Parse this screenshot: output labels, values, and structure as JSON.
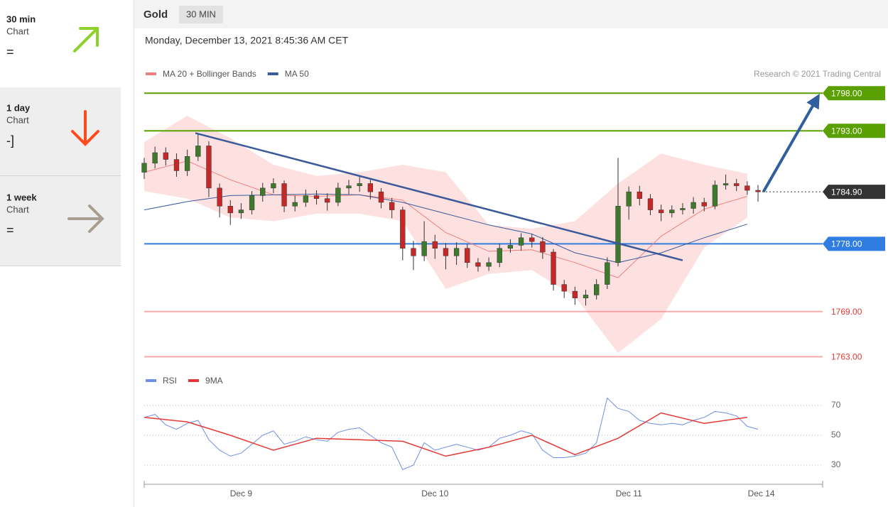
{
  "sidebar": {
    "panels": [
      {
        "period": "30 min",
        "label": "Chart",
        "signal": "="
      },
      {
        "period": "1 day",
        "label": "Chart",
        "signal": "-]"
      },
      {
        "period": "1 week",
        "label": "Chart",
        "signal": "="
      }
    ]
  },
  "chart_data": {
    "type": "candlestick",
    "title": "Gold",
    "timeframe": "30 MIN",
    "subtitle": "Monday, December 13, 2021 8:45:36 AM CET",
    "credit": "Research © 2021 Trading Central",
    "x": [
      0,
      1,
      2,
      3,
      4,
      5,
      6,
      7,
      8,
      9,
      10,
      11,
      12,
      13,
      14,
      15,
      16,
      17,
      18,
      19,
      20,
      21,
      22,
      23,
      24,
      25,
      26,
      27,
      28,
      29,
      30,
      31,
      32,
      33,
      34,
      35,
      36,
      37,
      38,
      39,
      40,
      41,
      42,
      43,
      44,
      45,
      46,
      47,
      48,
      49,
      50,
      51,
      52,
      53,
      54,
      55,
      56,
      57
    ],
    "open": [
      1787.5,
      1788.7,
      1790.1,
      1789.2,
      1787.7,
      1789.6,
      1791.0,
      1785.4,
      1783.0,
      1782.1,
      1782.5,
      1784.4,
      1785.4,
      1786.0,
      1783.0,
      1783.5,
      1784.4,
      1784.0,
      1783.5,
      1785.4,
      1785.7,
      1786.0,
      1784.9,
      1783.5,
      1782.5,
      1777.4,
      1776.4,
      1778.3,
      1777.4,
      1776.4,
      1777.4,
      1775.5,
      1775.0,
      1775.5,
      1777.4,
      1777.8,
      1778.8,
      1778.3,
      1776.9,
      1772.6,
      1771.7,
      1770.8,
      1771.2,
      1772.6,
      1775.5,
      1783.0,
      1784.9,
      1784.0,
      1782.5,
      1782.1,
      1782.5,
      1782.7,
      1783.5,
      1783.0,
      1785.8,
      1786.0,
      1785.7,
      1785.1
    ],
    "high": [
      1789.4,
      1790.9,
      1790.8,
      1790.0,
      1790.5,
      1792.6,
      1791.6,
      1786.0,
      1783.8,
      1783.4,
      1785.0,
      1786.1,
      1786.7,
      1786.4,
      1784.4,
      1785.2,
      1785.1,
      1784.7,
      1786.1,
      1786.5,
      1786.9,
      1786.5,
      1785.4,
      1784.1,
      1782.9,
      1778.4,
      1781.0,
      1779.2,
      1778.1,
      1778.2,
      1778.0,
      1776.1,
      1776.2,
      1778.0,
      1778.6,
      1779.4,
      1779.3,
      1778.9,
      1777.3,
      1773.2,
      1772.3,
      1771.9,
      1773.3,
      1776.2,
      1789.4,
      1785.6,
      1785.7,
      1784.6,
      1783.2,
      1783.1,
      1783.4,
      1784.2,
      1784.1,
      1786.4,
      1787.2,
      1786.6,
      1786.3,
      1785.8
    ],
    "low": [
      1786.6,
      1788.0,
      1788.4,
      1786.9,
      1787.0,
      1789.0,
      1784.2,
      1781.5,
      1780.5,
      1781.3,
      1781.9,
      1783.6,
      1784.7,
      1782.2,
      1782.3,
      1782.9,
      1783.2,
      1782.4,
      1783.0,
      1784.6,
      1784.9,
      1783.9,
      1782.7,
      1781.4,
      1775.8,
      1774.5,
      1775.7,
      1776.0,
      1774.6,
      1775.2,
      1774.8,
      1774.3,
      1774.4,
      1774.9,
      1776.8,
      1777.1,
      1777.5,
      1776.0,
      1771.8,
      1770.8,
      1769.9,
      1769.8,
      1770.6,
      1772.0,
      1775.0,
      1781.2,
      1783.1,
      1781.8,
      1781.0,
      1781.5,
      1781.9,
      1782.0,
      1782.3,
      1782.6,
      1785.2,
      1785.0,
      1784.5,
      1783.6
    ],
    "close": [
      1788.7,
      1790.1,
      1789.2,
      1787.7,
      1789.6,
      1791.0,
      1785.4,
      1783.0,
      1782.1,
      1782.5,
      1784.4,
      1785.4,
      1786.0,
      1783.0,
      1783.5,
      1784.4,
      1784.0,
      1783.5,
      1785.4,
      1785.7,
      1786.0,
      1784.9,
      1783.5,
      1782.5,
      1777.4,
      1776.4,
      1778.3,
      1777.4,
      1776.4,
      1777.4,
      1775.5,
      1775.0,
      1775.5,
      1777.4,
      1777.8,
      1778.8,
      1778.3,
      1776.9,
      1772.6,
      1771.7,
      1770.8,
      1771.2,
      1772.6,
      1775.5,
      1783.0,
      1784.9,
      1784.0,
      1782.5,
      1782.1,
      1782.5,
      1782.7,
      1783.5,
      1783.0,
      1785.8,
      1786.0,
      1785.7,
      1785.1,
      1784.9
    ],
    "up_color": "#3d7a2e",
    "down_color": "#c62828",
    "xlim": [
      0,
      63
    ],
    "ylim": [
      1762,
      1800
    ],
    "xticks": [
      {
        "value": 9,
        "label": "Dec 9"
      },
      {
        "value": 27,
        "label": "Dec 10"
      },
      {
        "value": 45,
        "label": "Dec 11"
      },
      {
        "value": 57.3,
        "label": "Dec 14"
      }
    ],
    "overlays": [
      {
        "name": "MA 20 + Bollinger Bands",
        "color": "#f08080",
        "band_color": "#fde0e0",
        "x": [
          0,
          4,
          8,
          12,
          16,
          20,
          24,
          28,
          32,
          36,
          40,
          44,
          48,
          52,
          56
        ],
        "values": [
          1787.5,
          1789,
          1786.5,
          1784.5,
          1784.3,
          1784.5,
          1783.8,
          1779.5,
          1777.0,
          1777.2,
          1775.5,
          1773.5,
          1779,
          1782.6,
          1784.3
        ],
        "upper": [
          1791.5,
          1795,
          1792,
          1788.5,
          1787,
          1787.5,
          1788.5,
          1787.5,
          1780.5,
          1780,
          1781,
          1786,
          1790,
          1788.5,
          1787.3
        ],
        "lower": [
          1785,
          1784,
          1781.5,
          1781,
          1782,
          1782,
          1781,
          1772,
          1774,
          1774.5,
          1771,
          1763.5,
          1768,
          1777.5,
          1781.5
        ]
      },
      {
        "name": "MA 50",
        "color": "#3a5a9a",
        "x": [
          0,
          4,
          8,
          12,
          16,
          20,
          24,
          28,
          32,
          36,
          40,
          44,
          48,
          52,
          56
        ],
        "values": [
          1782.5,
          1783.6,
          1784.4,
          1784.5,
          1784.6,
          1784.5,
          1783.5,
          1782.0,
          1780.5,
          1779.3,
          1776.8,
          1775.5,
          1776.8,
          1778.8,
          1780.6
        ]
      }
    ],
    "levels": [
      {
        "value": 1798,
        "label": "1798.00",
        "color": "#5aa000",
        "badge": true
      },
      {
        "value": 1793,
        "label": "1793.00",
        "color": "#5aa000",
        "badge": true
      },
      {
        "value": 1784.9,
        "label": "1784.90",
        "color": "#333333",
        "badge": true,
        "dotted": true
      },
      {
        "value": 1778,
        "label": "1778.00",
        "color": "#2f7de1",
        "badge": true
      },
      {
        "value": 1769,
        "label": "1769.00",
        "color": "#f08a8a",
        "badge": false
      },
      {
        "value": 1763,
        "label": "1763.00",
        "color": "#f08a8a",
        "badge": false
      }
    ],
    "trendline": {
      "color": "#3a5a9a",
      "x": [
        4.75,
        50
      ],
      "values": [
        1792.7,
        1775.8
      ]
    },
    "arrow": {
      "color": "#2f5f9f",
      "x": [
        57.5,
        62.6
      ],
      "values": [
        1784.9,
        1797.6
      ]
    },
    "rsi": {
      "ylim": [
        20,
        80
      ],
      "yticks": [
        30,
        50,
        70
      ],
      "series": [
        {
          "name": "RSI",
          "color": "#6f8fe6",
          "x": [
            0,
            1,
            2,
            3,
            4,
            5,
            6,
            7,
            8,
            9,
            10,
            11,
            12,
            13,
            14,
            15,
            16,
            17,
            18,
            19,
            20,
            21,
            22,
            23,
            24,
            25,
            26,
            27,
            28,
            29,
            30,
            31,
            32,
            33,
            34,
            35,
            36,
            37,
            38,
            39,
            40,
            41,
            42,
            43,
            44,
            45,
            46,
            47,
            48,
            49,
            50,
            51,
            52,
            53,
            54,
            55,
            56,
            57
          ],
          "values": [
            62,
            64,
            57,
            54,
            58,
            60,
            47,
            40,
            36,
            38,
            44,
            50,
            53,
            44,
            46,
            49,
            47,
            46,
            52,
            54,
            55,
            50,
            45,
            42,
            27,
            30,
            45,
            40,
            42,
            44,
            42,
            40,
            42,
            48,
            50,
            53,
            51,
            40,
            35,
            35,
            36,
            38,
            45,
            75,
            68,
            66,
            60,
            58,
            57,
            58,
            57,
            60,
            62,
            66,
            65,
            63,
            56,
            54
          ]
        },
        {
          "name": "9MA",
          "color": "#e53935",
          "x": [
            0,
            4,
            8,
            12,
            16,
            20,
            24,
            28,
            32,
            36,
            40,
            44,
            48,
            52,
            56
          ],
          "values": [
            62,
            59,
            50,
            40,
            48,
            47,
            46,
            36,
            42,
            50,
            37,
            48,
            65,
            58,
            62
          ]
        }
      ]
    }
  }
}
